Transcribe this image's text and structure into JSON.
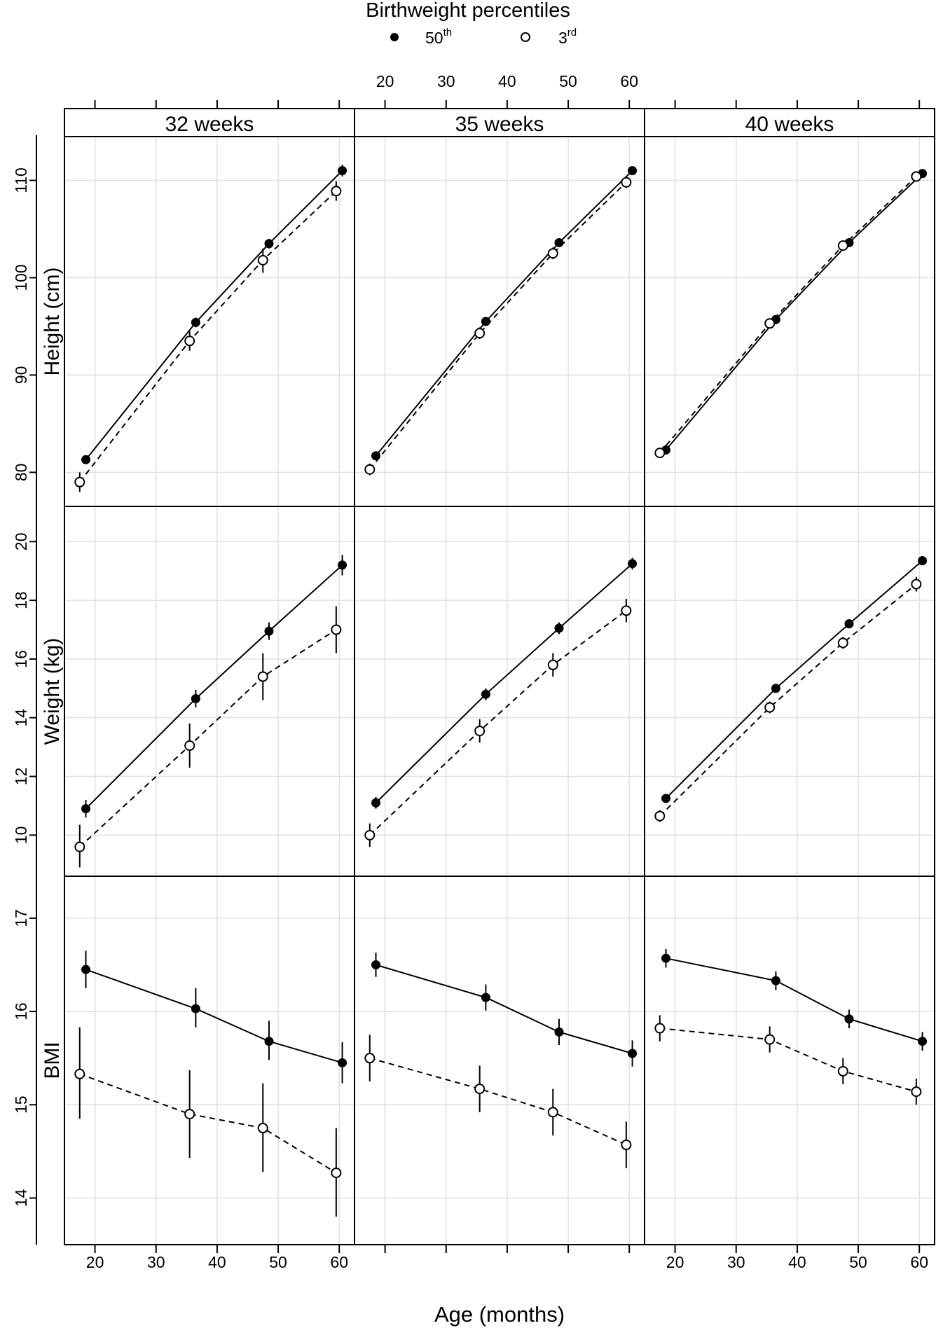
{
  "chart_data": {
    "type": "line",
    "legend": {
      "title": "Birthweight percentiles",
      "placement": "top-center",
      "items": [
        {
          "marker": "filled-circle",
          "label": "50",
          "superscript": "th"
        },
        {
          "marker": "open-circle",
          "label": "3",
          "superscript": "rd"
        }
      ]
    },
    "xlabel": "Age (months)",
    "xlim": [
      15,
      62.5
    ],
    "xticks": [
      20,
      30,
      40,
      50,
      60
    ],
    "grid": true,
    "columns": [
      {
        "label": "32 weeks"
      },
      {
        "label": "35 weeks"
      },
      {
        "label": "40 weeks"
      }
    ],
    "rows": [
      {
        "ylabel": "Height (cm)",
        "ylim": [
          76.5,
          114.5
        ],
        "yticks": [
          80,
          90,
          100,
          110
        ]
      },
      {
        "ylabel": "Weight (kg)",
        "ylim": [
          8.6,
          21.2
        ],
        "yticks": [
          10,
          12,
          14,
          16,
          18,
          20
        ]
      },
      {
        "ylabel": "BMI",
        "ylim": [
          13.5,
          17.45
        ],
        "yticks": [
          14,
          15,
          16,
          17
        ]
      }
    ],
    "panels": [
      {
        "row": 0,
        "col": 0,
        "series": [
          {
            "style": "solid-filled",
            "points": [
              {
                "x": 18.5,
                "y": 81.3,
                "lo": 80.9,
                "hi": 81.7
              },
              {
                "x": 36.5,
                "y": 95.4,
                "lo": 94.9,
                "hi": 95.9
              },
              {
                "x": 48.5,
                "y": 103.5,
                "lo": 103.0,
                "hi": 104.0
              },
              {
                "x": 60.5,
                "y": 111.0,
                "lo": 110.4,
                "hi": 111.6
              }
            ]
          },
          {
            "style": "dashed-open",
            "points": [
              {
                "x": 17.5,
                "y": 79.0,
                "lo": 78.0,
                "hi": 80.0
              },
              {
                "x": 35.5,
                "y": 93.5,
                "lo": 92.5,
                "hi": 94.5
              },
              {
                "x": 47.5,
                "y": 101.8,
                "lo": 100.5,
                "hi": 103.0
              },
              {
                "x": 59.5,
                "y": 108.9,
                "lo": 107.9,
                "hi": 109.9
              }
            ]
          }
        ]
      },
      {
        "row": 0,
        "col": 1,
        "series": [
          {
            "style": "solid-filled",
            "points": [
              {
                "x": 18.5,
                "y": 81.7,
                "lo": 81.3,
                "hi": 82.1
              },
              {
                "x": 36.5,
                "y": 95.5,
                "lo": 95.1,
                "hi": 95.9
              },
              {
                "x": 48.5,
                "y": 103.6,
                "lo": 103.2,
                "hi": 104.0
              },
              {
                "x": 60.5,
                "y": 111.0,
                "lo": 110.6,
                "hi": 111.4
              }
            ]
          },
          {
            "style": "dashed-open",
            "points": [
              {
                "x": 17.5,
                "y": 80.3,
                "lo": 79.7,
                "hi": 80.9
              },
              {
                "x": 35.5,
                "y": 94.3,
                "lo": 93.7,
                "hi": 94.9
              },
              {
                "x": 47.5,
                "y": 102.5,
                "lo": 101.9,
                "hi": 103.1
              },
              {
                "x": 59.5,
                "y": 109.8,
                "lo": 109.2,
                "hi": 110.4
              }
            ]
          }
        ]
      },
      {
        "row": 0,
        "col": 2,
        "series": [
          {
            "style": "solid-filled",
            "points": [
              {
                "x": 18.5,
                "y": 82.3,
                "lo": 82.0,
                "hi": 82.6
              },
              {
                "x": 36.5,
                "y": 95.7,
                "lo": 95.4,
                "hi": 96.0
              },
              {
                "x": 48.5,
                "y": 103.6,
                "lo": 103.3,
                "hi": 103.9
              },
              {
                "x": 60.5,
                "y": 110.7,
                "lo": 110.4,
                "hi": 111.0
              }
            ]
          },
          {
            "style": "dashed-open",
            "points": [
              {
                "x": 17.5,
                "y": 82.0,
                "lo": 81.7,
                "hi": 82.3
              },
              {
                "x": 35.5,
                "y": 95.3,
                "lo": 95.0,
                "hi": 95.6
              },
              {
                "x": 47.5,
                "y": 103.3,
                "lo": 103.0,
                "hi": 103.6
              },
              {
                "x": 59.5,
                "y": 110.4,
                "lo": 110.1,
                "hi": 110.7
              }
            ]
          }
        ]
      },
      {
        "row": 1,
        "col": 0,
        "series": [
          {
            "style": "solid-filled",
            "points": [
              {
                "x": 18.5,
                "y": 10.9,
                "lo": 10.6,
                "hi": 11.2
              },
              {
                "x": 36.5,
                "y": 14.65,
                "lo": 14.35,
                "hi": 14.95
              },
              {
                "x": 48.5,
                "y": 16.95,
                "lo": 16.65,
                "hi": 17.25
              },
              {
                "x": 60.5,
                "y": 19.2,
                "lo": 18.85,
                "hi": 19.55
              }
            ]
          },
          {
            "style": "dashed-open",
            "points": [
              {
                "x": 17.5,
                "y": 9.6,
                "lo": 8.9,
                "hi": 10.35
              },
              {
                "x": 35.5,
                "y": 13.05,
                "lo": 12.3,
                "hi": 13.8
              },
              {
                "x": 47.5,
                "y": 15.4,
                "lo": 14.6,
                "hi": 16.2
              },
              {
                "x": 59.5,
                "y": 17.0,
                "lo": 16.2,
                "hi": 17.8
              }
            ]
          }
        ]
      },
      {
        "row": 1,
        "col": 1,
        "series": [
          {
            "style": "solid-filled",
            "points": [
              {
                "x": 18.5,
                "y": 11.1,
                "lo": 10.9,
                "hi": 11.3
              },
              {
                "x": 36.5,
                "y": 14.8,
                "lo": 14.6,
                "hi": 15.0
              },
              {
                "x": 48.5,
                "y": 17.05,
                "lo": 16.85,
                "hi": 17.25
              },
              {
                "x": 60.5,
                "y": 19.25,
                "lo": 19.05,
                "hi": 19.45
              }
            ]
          },
          {
            "style": "dashed-open",
            "points": [
              {
                "x": 17.5,
                "y": 10.0,
                "lo": 9.6,
                "hi": 10.4
              },
              {
                "x": 35.5,
                "y": 13.55,
                "lo": 13.15,
                "hi": 13.95
              },
              {
                "x": 47.5,
                "y": 15.8,
                "lo": 15.4,
                "hi": 16.2
              },
              {
                "x": 59.5,
                "y": 17.65,
                "lo": 17.25,
                "hi": 18.05
              }
            ]
          }
        ]
      },
      {
        "row": 1,
        "col": 2,
        "series": [
          {
            "style": "solid-filled",
            "points": [
              {
                "x": 18.5,
                "y": 11.25,
                "lo": 11.1,
                "hi": 11.4
              },
              {
                "x": 36.5,
                "y": 15.0,
                "lo": 14.85,
                "hi": 15.15
              },
              {
                "x": 48.5,
                "y": 17.2,
                "lo": 17.05,
                "hi": 17.35
              },
              {
                "x": 60.5,
                "y": 19.35,
                "lo": 19.2,
                "hi": 19.5
              }
            ]
          },
          {
            "style": "dashed-open",
            "points": [
              {
                "x": 17.5,
                "y": 10.65,
                "lo": 10.45,
                "hi": 10.85
              },
              {
                "x": 35.5,
                "y": 14.35,
                "lo": 14.15,
                "hi": 14.55
              },
              {
                "x": 47.5,
                "y": 16.55,
                "lo": 16.35,
                "hi": 16.75
              },
              {
                "x": 59.5,
                "y": 18.55,
                "lo": 18.3,
                "hi": 18.8
              }
            ]
          }
        ]
      },
      {
        "row": 2,
        "col": 0,
        "series": [
          {
            "style": "solid-filled",
            "points": [
              {
                "x": 18.5,
                "y": 16.45,
                "lo": 16.25,
                "hi": 16.65
              },
              {
                "x": 36.5,
                "y": 16.03,
                "lo": 15.83,
                "hi": 16.25
              },
              {
                "x": 48.5,
                "y": 15.68,
                "lo": 15.48,
                "hi": 15.9
              },
              {
                "x": 60.5,
                "y": 15.45,
                "lo": 15.23,
                "hi": 15.67
              }
            ]
          },
          {
            "style": "dashed-open",
            "points": [
              {
                "x": 17.5,
                "y": 15.33,
                "lo": 14.85,
                "hi": 15.83
              },
              {
                "x": 35.5,
                "y": 14.9,
                "lo": 14.43,
                "hi": 15.37
              },
              {
                "x": 47.5,
                "y": 14.75,
                "lo": 14.28,
                "hi": 15.23
              },
              {
                "x": 59.5,
                "y": 14.27,
                "lo": 13.8,
                "hi": 14.75
              }
            ]
          }
        ]
      },
      {
        "row": 2,
        "col": 1,
        "series": [
          {
            "style": "solid-filled",
            "points": [
              {
                "x": 18.5,
                "y": 16.5,
                "lo": 16.37,
                "hi": 16.63
              },
              {
                "x": 36.5,
                "y": 16.15,
                "lo": 16.01,
                "hi": 16.29
              },
              {
                "x": 48.5,
                "y": 15.78,
                "lo": 15.64,
                "hi": 15.92
              },
              {
                "x": 60.5,
                "y": 15.55,
                "lo": 15.41,
                "hi": 15.69
              }
            ]
          },
          {
            "style": "dashed-open",
            "points": [
              {
                "x": 17.5,
                "y": 15.5,
                "lo": 15.25,
                "hi": 15.75
              },
              {
                "x": 35.5,
                "y": 15.17,
                "lo": 14.92,
                "hi": 15.42
              },
              {
                "x": 47.5,
                "y": 14.92,
                "lo": 14.67,
                "hi": 15.17
              },
              {
                "x": 59.5,
                "y": 14.57,
                "lo": 14.32,
                "hi": 14.82
              }
            ]
          }
        ]
      },
      {
        "row": 2,
        "col": 2,
        "series": [
          {
            "style": "solid-filled",
            "points": [
              {
                "x": 18.5,
                "y": 16.57,
                "lo": 16.47,
                "hi": 16.67
              },
              {
                "x": 36.5,
                "y": 16.33,
                "lo": 16.23,
                "hi": 16.43
              },
              {
                "x": 48.5,
                "y": 15.92,
                "lo": 15.82,
                "hi": 16.02
              },
              {
                "x": 60.5,
                "y": 15.68,
                "lo": 15.58,
                "hi": 15.78
              }
            ]
          },
          {
            "style": "dashed-open",
            "points": [
              {
                "x": 17.5,
                "y": 15.82,
                "lo": 15.68,
                "hi": 15.96
              },
              {
                "x": 35.5,
                "y": 15.7,
                "lo": 15.56,
                "hi": 15.84
              },
              {
                "x": 47.5,
                "y": 15.36,
                "lo": 15.22,
                "hi": 15.5
              },
              {
                "x": 59.5,
                "y": 15.14,
                "lo": 15.0,
                "hi": 15.28
              }
            ]
          }
        ]
      }
    ]
  }
}
